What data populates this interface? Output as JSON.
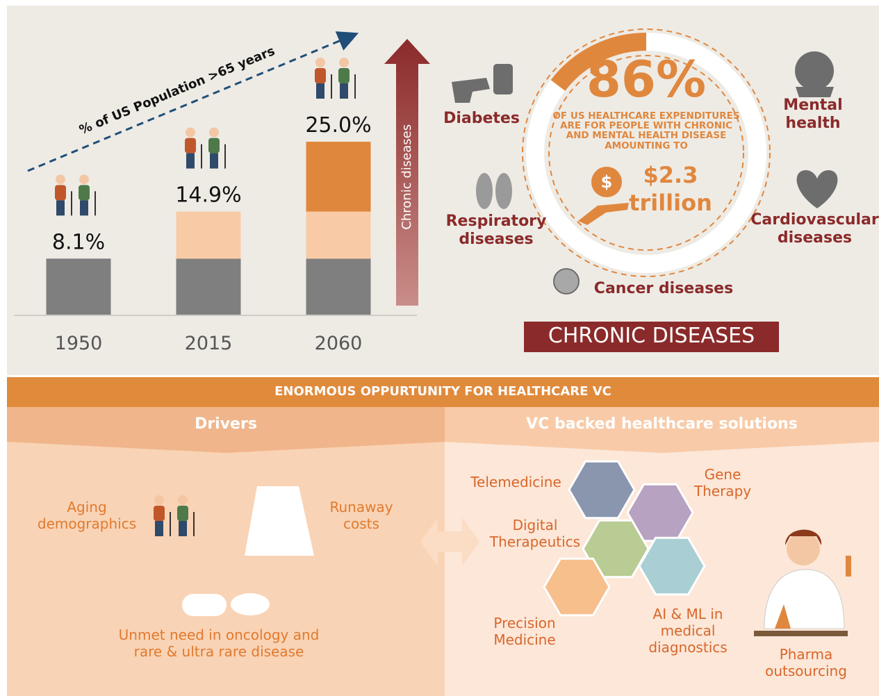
{
  "chart_data": {
    "type": "stacked_bar",
    "title": "% of US Population >65 years",
    "categories": [
      "1950",
      "2015",
      "2060"
    ],
    "series": [
      {
        "color": "#7f7f7f",
        "values": [
          8.1,
          8.1,
          8.1
        ]
      },
      {
        "color": "#f8cba6",
        "values": [
          null,
          6.8,
          6.8
        ]
      },
      {
        "color": "#e0873e",
        "values": [
          null,
          null,
          10.1
        ]
      }
    ],
    "totals": [
      8.1,
      14.9,
      25.0
    ],
    "total_labels": [
      "8.1%",
      "14.9%",
      "25.0%"
    ],
    "arrow_label": "Chronic diseases"
  },
  "chronic": {
    "diseases": [
      "Diabetes",
      "Mental health",
      "Respiratory diseases",
      "Cardiovascular diseases",
      "Cancer diseases"
    ],
    "stat": "86%",
    "stat_text": "OF US HEALTHCARE EXPENDITURES ARE FOR PEOPLE WITH CHRONIC AND MENTAL HEALTH DISEASE AMOUNTING TO",
    "amount": "$2.3",
    "amount_unit": "trillion",
    "title": "CHRONIC DISEASES"
  },
  "banner": "ENORMOUS OPPURTUNITY FOR HEALTHCARE VC",
  "drivers": {
    "title": "Drivers",
    "items": [
      "Aging demographics",
      "Runaway costs",
      "Unmet need in oncology and rare & ultra rare disease"
    ]
  },
  "solutions": {
    "title": "VC backed healthcare solutions",
    "items": [
      "Telemedicine",
      "Gene Therapy",
      "Digital Therapeutics",
      "AI & ML in medical diagnostics",
      "Precision Medicine",
      "Pharma outsourcing"
    ]
  }
}
